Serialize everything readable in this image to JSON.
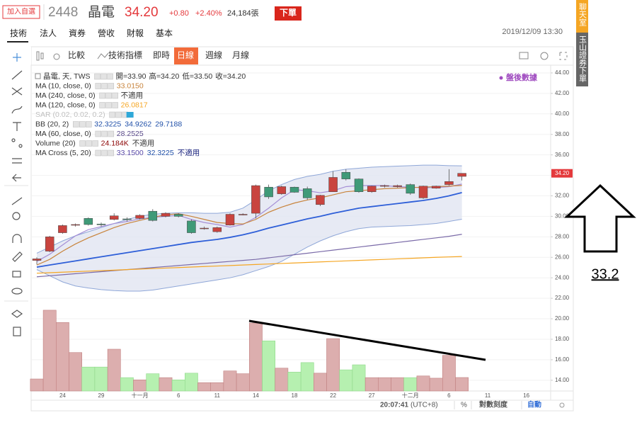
{
  "header": {
    "watch": "加入自選",
    "code": "2448",
    "name": "晶電",
    "price": "34.20",
    "change": "+0.80",
    "change_pct": "+2.40%",
    "volume": "24,184張",
    "order": "下單"
  },
  "tabs": [
    "技術",
    "法人",
    "資券",
    "營收",
    "財報",
    "基本"
  ],
  "datetime": "2019/12/09 13:30",
  "toolbar": [
    "比較",
    "技術指標",
    "即時",
    "日線",
    "週線",
    "月線"
  ],
  "toolbar_active": 3,
  "side_buttons": [
    {
      "text": "聊天室",
      "color": "#f5a623"
    },
    {
      "text": "玉山證券下單",
      "color": "#666666"
    }
  ],
  "legend": {
    "symbol": "晶電, 天, TWS",
    "ohlc": [
      "開=33.90",
      "高=34.20",
      "低=33.50",
      "收=34.20"
    ],
    "studies": [
      {
        "label": "MA (10, close, 0)",
        "values": [
          {
            "text": "33.0150",
            "color": "#c8843c"
          }
        ]
      },
      {
        "label": "MA (240, close, 0)",
        "values": [
          {
            "text": "不適用",
            "color": "#333333"
          }
        ]
      },
      {
        "label": "MA (120, close, 0)",
        "values": [
          {
            "text": "26.0817",
            "color": "#f5a623"
          }
        ]
      },
      {
        "label": "SAR (0.02, 0.02, 0.2)",
        "muted": true,
        "values": []
      },
      {
        "label": "BB (20, 2)",
        "values": [
          {
            "text": "32.3225",
            "color": "#1f4fa8"
          },
          {
            "text": "34.9262",
            "color": "#1f4fa8"
          },
          {
            "text": "29.7188",
            "color": "#1f4fa8"
          }
        ]
      },
      {
        "label": "MA (60, close, 0)",
        "values": [
          {
            "text": "28.2525",
            "color": "#5a4a8a"
          }
        ]
      },
      {
        "label": "Volume (20)",
        "values": [
          {
            "text": "24.184K",
            "color": "#8b0000"
          },
          {
            "text": "不適用",
            "color": "#333333"
          }
        ]
      },
      {
        "label": "MA Cross (5, 20)",
        "values": [
          {
            "text": "33.1500",
            "color": "#5a4aa8"
          },
          {
            "text": "32.3225",
            "color": "#1f4fa8"
          },
          {
            "text": "不適用",
            "color": "#1a237e"
          }
        ]
      }
    ]
  },
  "after_hours": "盤後數據",
  "status": {
    "time": "20:07:41",
    "tz": "(UTC+8)",
    "pct": "%",
    "log": "對數刻度",
    "auto": "自動"
  },
  "annotation": {
    "label": "33.2"
  },
  "chart_data": {
    "type": "candlestick",
    "categories": [
      null,
      null,
      "24",
      null,
      null,
      "29",
      null,
      null,
      "十一月",
      null,
      null,
      "6",
      null,
      null,
      "11",
      null,
      null,
      "14",
      null,
      null,
      "18",
      null,
      null,
      "22",
      null,
      null,
      "27",
      null,
      null,
      "十二月",
      null,
      null,
      "6",
      null,
      null,
      "11",
      null,
      null,
      "16"
    ],
    "open": [
      25.7,
      26.6,
      28.4,
      29.15,
      29.8,
      29.25,
      29.7,
      29.75,
      29.8,
      30.5,
      30.0,
      30.2,
      29.55,
      28.85,
      28.5,
      29.15,
      30.2,
      30.3,
      32.85,
      32.2,
      32.85,
      32.7,
      31.15,
      32.4,
      34.3,
      33.65,
      32.4,
      32.95,
      32.9,
      33.1,
      31.8,
      32.75,
      33.1,
      33.9,
      null,
      null,
      null,
      null,
      null
    ],
    "high": [
      26.0,
      28.1,
      29.2,
      29.3,
      29.9,
      29.4,
      30.3,
      29.9,
      30.2,
      30.7,
      30.4,
      30.3,
      29.7,
      29.0,
      29.0,
      30.3,
      30.3,
      33.1,
      33.1,
      33.0,
      32.9,
      32.9,
      32.1,
      34.4,
      34.6,
      33.7,
      33.0,
      33.1,
      33.1,
      33.2,
      33.0,
      33.0,
      34.6,
      34.2,
      null,
      null,
      null,
      null,
      null
    ],
    "low": [
      25.3,
      26.5,
      28.3,
      29.0,
      29.1,
      29.0,
      29.6,
      29.5,
      29.7,
      29.5,
      29.9,
      29.9,
      28.3,
      28.7,
      28.4,
      29.1,
      30.1,
      29.8,
      31.7,
      32.1,
      32.3,
      31.6,
      31.0,
      32.4,
      33.5,
      32.3,
      32.3,
      32.8,
      32.8,
      32.1,
      31.7,
      32.7,
      33.0,
      33.5,
      null,
      null,
      null,
      null,
      null
    ],
    "close": [
      25.85,
      28.0,
      29.1,
      29.2,
      29.2,
      29.2,
      30.05,
      29.7,
      30.1,
      29.6,
      30.3,
      30.0,
      28.4,
      28.85,
      28.9,
      30.2,
      30.2,
      33.0,
      31.9,
      32.9,
      32.35,
      31.8,
      32.05,
      33.8,
      33.65,
      32.4,
      32.95,
      33.0,
      33.0,
      32.25,
      32.95,
      32.95,
      33.4,
      34.2,
      null,
      null,
      null,
      null,
      null
    ],
    "volume": [
      21600,
      145000,
      123000,
      69000,
      43000,
      43000,
      75000,
      24000,
      20000,
      31000,
      24000,
      20000,
      32000,
      15000,
      15000,
      36000,
      31000,
      122000,
      90000,
      41000,
      34000,
      51000,
      32000,
      94000,
      38000,
      47000,
      24000,
      24000,
      24000,
      24000,
      27000,
      23000,
      64000,
      24184,
      null,
      null,
      null,
      null,
      null
    ],
    "up_color": "#c9443f",
    "down_color": "#3f9a78",
    "volume_up_color": "#dcaeae",
    "volume_down_color": "#b6f0b0",
    "lines": [
      {
        "color": "#a58fd6",
        "values": [
          25.6,
          26.3,
          27.2,
          28.1,
          28.7,
          29.0,
          29.3,
          29.5,
          29.75,
          29.9,
          30.0,
          30.1,
          29.7,
          29.4,
          29.2,
          28.95,
          29.2,
          29.9,
          30.8,
          31.8,
          32.6,
          32.5,
          32.3,
          32.5,
          32.9,
          33.0,
          33.0,
          33.0,
          32.9,
          32.85,
          32.8,
          32.8,
          32.9,
          33.15,
          null,
          null,
          null,
          null,
          null
        ]
      },
      {
        "color": "#c8843c",
        "values": [
          25.25,
          25.8,
          26.6,
          27.3,
          27.9,
          28.4,
          28.9,
          29.3,
          29.6,
          29.9,
          30.15,
          30.25,
          30.0,
          29.7,
          29.4,
          29.3,
          29.25,
          29.7,
          30.4,
          30.9,
          31.3,
          31.6,
          31.8,
          32.1,
          32.4,
          32.5,
          32.6,
          32.7,
          32.75,
          32.8,
          32.85,
          32.9,
          32.95,
          33.02,
          null,
          null,
          null,
          null,
          null
        ]
      },
      {
        "color": "#2e5fd8",
        "values": [
          25.04,
          25.25,
          25.45,
          25.65,
          25.85,
          26.05,
          26.25,
          26.45,
          26.65,
          26.85,
          27.05,
          27.25,
          27.45,
          27.6,
          27.75,
          27.95,
          28.2,
          28.5,
          28.85,
          29.15,
          29.45,
          29.75,
          30.0,
          30.3,
          30.55,
          30.8,
          30.95,
          31.1,
          31.25,
          31.4,
          31.55,
          31.75,
          32.0,
          32.32,
          null,
          null,
          null,
          null,
          null
        ]
      },
      {
        "color": "#7a6aa8",
        "values": [
          24.1,
          24.2,
          24.3,
          24.4,
          24.5,
          24.6,
          24.7,
          24.8,
          24.9,
          25.0,
          25.1,
          25.2,
          25.3,
          25.4,
          25.5,
          25.6,
          25.7,
          25.8,
          25.95,
          26.1,
          26.25,
          26.4,
          26.55,
          26.7,
          26.85,
          27.0,
          27.15,
          27.3,
          27.45,
          27.6,
          27.75,
          27.9,
          28.05,
          28.25,
          null,
          null,
          null,
          null,
          null
        ]
      },
      {
        "color": "#f5a623",
        "values": [
          24.45,
          24.5,
          24.55,
          24.6,
          24.65,
          24.7,
          24.75,
          24.8,
          24.85,
          24.9,
          24.95,
          25.0,
          25.05,
          25.1,
          25.15,
          25.2,
          25.25,
          25.3,
          25.35,
          25.4,
          25.45,
          25.5,
          25.55,
          25.6,
          25.65,
          25.7,
          25.75,
          25.8,
          25.85,
          25.9,
          25.95,
          26.0,
          26.04,
          26.08,
          null,
          null,
          null,
          null,
          null
        ]
      }
    ],
    "bollinger": {
      "color": "#8fa7d8",
      "fill": "#dfe3f0",
      "upper": [
        26.4,
        27.0,
        27.6,
        28.1,
        28.5,
        28.9,
        29.3,
        29.7,
        30.0,
        30.2,
        30.3,
        30.35,
        30.35,
        30.3,
        30.3,
        30.4,
        30.8,
        31.6,
        32.5,
        33.1,
        33.6,
        33.9,
        34.1,
        34.4,
        34.6,
        34.7,
        34.8,
        34.85,
        34.9,
        34.95,
        35.0,
        35.0,
        34.95,
        34.93,
        null,
        null,
        null,
        null,
        null
      ],
      "lower": [
        24.8,
        24.2,
        23.6,
        23.2,
        23.0,
        22.85,
        22.75,
        22.7,
        22.7,
        22.8,
        23.0,
        23.2,
        23.4,
        23.6,
        23.8,
        24.0,
        24.3,
        24.7,
        25.1,
        25.6,
        26.3,
        27.0,
        27.6,
        28.1,
        28.5,
        28.8,
        28.95,
        29.0,
        29.05,
        29.1,
        29.2,
        29.3,
        29.5,
        29.72,
        null,
        null,
        null,
        null,
        null
      ]
    },
    "ylim": [
      12.95,
      44.55
    ],
    "yticks": [
      {
        "value": 44,
        "label": "44.00"
      },
      {
        "value": 42,
        "label": "42.00"
      },
      {
        "value": 40,
        "label": "40.00"
      },
      {
        "value": 38,
        "label": "38.00"
      },
      {
        "value": 36,
        "label": "36.00"
      },
      {
        "value": 34,
        "label": "34.00"
      },
      {
        "value": 32,
        "label": "32.00"
      },
      {
        "value": 30,
        "label": "30.00"
      },
      {
        "value": 28,
        "label": "28.00"
      },
      {
        "value": 26,
        "label": "26.00"
      },
      {
        "value": 24,
        "label": "24.00"
      },
      {
        "value": 22,
        "label": "22.00"
      },
      {
        "value": 20,
        "label": "20.00"
      },
      {
        "value": 18,
        "label": "18.00"
      },
      {
        "value": 16,
        "label": "16.00"
      },
      {
        "value": 14,
        "label": "14.00"
      }
    ],
    "volume_ylim": [
      0,
      150000
    ],
    "last_label": "34.20",
    "grid": true
  }
}
